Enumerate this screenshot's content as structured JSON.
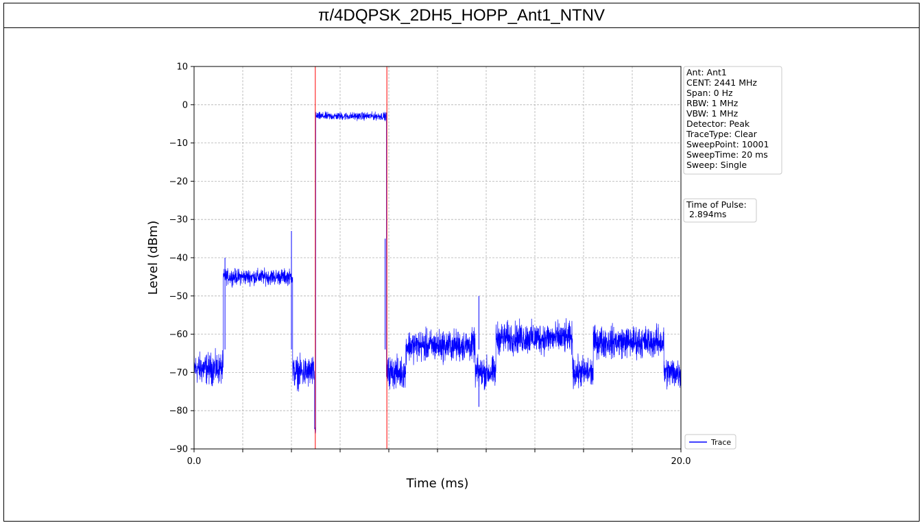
{
  "page_title": "π/4DQPSK_2DH5_HOPP_Ant1_NTNV",
  "chart_data": {
    "type": "line",
    "title": "π/4DQPSK_2DH5_HOPP_Ant1_NTNV",
    "xlabel": "Time (ms)",
    "ylabel": "Level (dBm)",
    "xlim": [
      0,
      20
    ],
    "ylim": [
      -90,
      10
    ],
    "x_tick_labels": [
      "0.0",
      "20.0"
    ],
    "y_ticks": [
      10,
      0,
      -10,
      -20,
      -30,
      -40,
      -50,
      -60,
      -70,
      -80,
      -90
    ],
    "y_tick_labels": [
      "10",
      "0",
      "−10",
      "−20",
      "−30",
      "−40",
      "−50",
      "−60",
      "−70",
      "−80",
      "−90"
    ],
    "grid": true,
    "series": [
      {
        "name": "Trace",
        "color": "#0000ff",
        "segments": [
          {
            "x0": 0.0,
            "x1": 1.2,
            "level": -69,
            "noise": 6
          },
          {
            "x0": 1.2,
            "x1": 4.05,
            "level": -45,
            "noise": 3
          },
          {
            "x0": 4.05,
            "x1": 4.95,
            "level": -70,
            "noise": 6
          },
          {
            "x0": 4.95,
            "x1": 5.0,
            "level": -85,
            "noise": 2
          },
          {
            "x0": 5.0,
            "x1": 7.9,
            "level": -3,
            "noise": 1.5
          },
          {
            "x0": 7.9,
            "x1": 8.7,
            "level": -70,
            "noise": 6
          },
          {
            "x0": 8.7,
            "x1": 11.55,
            "level": -63,
            "noise": 6
          },
          {
            "x0": 11.55,
            "x1": 12.4,
            "level": -70,
            "noise": 6
          },
          {
            "x0": 12.4,
            "x1": 15.55,
            "level": -61,
            "noise": 6
          },
          {
            "x0": 15.55,
            "x1": 16.4,
            "level": -70,
            "noise": 6
          },
          {
            "x0": 16.4,
            "x1": 19.3,
            "level": -62,
            "noise": 6
          },
          {
            "x0": 19.3,
            "x1": 20.0,
            "level": -70,
            "noise": 6
          }
        ],
        "spikes": [
          {
            "x": 1.27,
            "y": -40
          },
          {
            "x": 4.0,
            "y": -33
          },
          {
            "x": 7.85,
            "y": -35
          },
          {
            "x": 11.7,
            "y": -50
          },
          {
            "x": 11.7,
            "y": -79
          }
        ]
      }
    ],
    "markers": [
      {
        "x": 4.98,
        "color": "#ff0000"
      },
      {
        "x": 7.92,
        "color": "#ff0000"
      }
    ],
    "legend": {
      "placement": "bottom-right",
      "entries": [
        "Trace"
      ]
    }
  },
  "info_box": [
    "Ant: Ant1",
    "CENT: 2441 MHz",
    "Span: 0 Hz",
    "RBW: 1 MHz",
    "VBW: 1 MHz",
    "Detector: Peak",
    "TraceType: Clear",
    "SweepPoint: 10001",
    "SweepTime: 20 ms",
    "Sweep: Single"
  ],
  "pulse_box": [
    "Time of Pulse:",
    " 2.894ms"
  ]
}
